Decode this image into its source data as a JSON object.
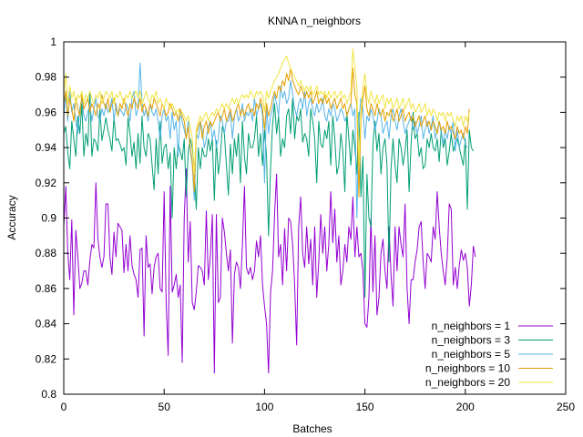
{
  "chart_data": {
    "type": "line",
    "title": "KNNA n_neighbors",
    "xlabel": "Batches",
    "ylabel": "Accuracy",
    "xlim": [
      0,
      250
    ],
    "ylim": [
      0.8,
      1.0
    ],
    "xticks": [
      "0",
      "50",
      "100",
      "150",
      "200",
      "250"
    ],
    "yticks": [
      "0.8",
      "0.82",
      "0.84",
      "0.86",
      "0.88",
      "0.9",
      "0.92",
      "0.94",
      "0.96",
      "0.98",
      "1"
    ],
    "grid": false,
    "legend_position": "bottom-right",
    "series": [
      {
        "name": "n_neighbors = 1",
        "color": "#9400d3",
        "values": [
          0.895,
          0.918,
          0.88,
          0.865,
          0.899,
          0.845,
          0.893,
          0.878,
          0.86,
          0.863,
          0.87,
          0.87,
          0.862,
          0.876,
          0.885,
          0.883,
          0.92,
          0.888,
          0.878,
          0.872,
          0.878,
          0.908,
          0.908,
          0.878,
          0.868,
          0.892,
          0.878,
          0.897,
          0.895,
          0.893,
          0.869,
          0.885,
          0.87,
          0.89,
          0.873,
          0.868,
          0.865,
          0.855,
          0.882,
          0.883,
          0.833,
          0.89,
          0.872,
          0.874,
          0.857,
          0.872,
          0.878,
          0.88,
          0.86,
          0.858,
          0.915,
          0.852,
          0.822,
          0.918,
          0.858,
          0.862,
          0.868,
          0.855,
          0.862,
          0.818,
          0.9,
          0.928,
          0.875,
          0.898,
          0.852,
          0.848,
          0.858,
          0.873,
          0.872,
          0.87,
          0.862,
          0.904,
          0.865,
          0.878,
          0.902,
          0.812,
          0.902,
          0.852,
          0.855,
          0.9,
          0.892,
          0.88,
          0.87,
          0.882,
          0.829,
          0.868,
          0.875,
          0.872,
          0.86,
          0.885,
          0.918,
          0.872,
          0.868,
          0.872,
          0.865,
          0.87,
          0.887,
          0.878,
          0.89,
          0.862,
          0.85,
          0.84,
          0.812,
          0.858,
          0.87,
          0.902,
          0.925,
          0.878,
          0.885,
          0.862,
          0.894,
          0.87,
          0.9,
          0.898,
          0.885,
          0.862,
          0.828,
          0.895,
          0.912,
          0.88,
          0.872,
          0.895,
          0.874,
          0.888,
          0.862,
          0.895,
          0.855,
          0.875,
          0.902,
          0.88,
          0.895,
          0.87,
          0.885,
          0.915,
          0.886,
          0.905,
          0.875,
          0.89,
          0.862,
          0.87,
          0.885,
          0.875,
          0.895,
          0.888,
          0.912,
          0.878,
          0.895,
          0.878,
          0.88,
          0.87,
          0.84,
          0.838,
          0.855,
          0.9,
          0.858,
          0.89,
          0.845,
          0.855,
          0.88,
          0.888,
          0.87,
          0.86,
          0.895,
          0.868,
          0.85,
          0.895,
          0.87,
          0.895,
          0.885,
          0.878,
          0.908,
          0.86,
          0.84,
          0.865,
          0.865,
          0.875,
          0.882,
          0.895,
          0.898,
          0.875,
          0.86,
          0.88,
          0.878,
          0.875,
          0.895,
          0.888,
          0.915,
          0.895,
          0.88,
          0.87,
          0.862,
          0.878,
          0.908,
          0.905,
          0.862,
          0.872,
          0.86,
          0.873,
          0.882,
          0.876,
          0.88,
          0.872,
          0.85,
          0.862,
          0.884,
          0.878
        ]
      },
      {
        "name": "n_neighbors = 3",
        "color": "#009e73",
        "values": [
          0.948,
          0.952,
          0.937,
          0.928,
          0.955,
          0.945,
          0.935,
          0.958,
          0.948,
          0.965,
          0.935,
          0.948,
          0.941,
          0.972,
          0.935,
          0.945,
          0.943,
          0.938,
          0.962,
          0.944,
          0.95,
          0.957,
          0.95,
          0.945,
          0.938,
          0.958,
          0.944,
          0.945,
          0.942,
          0.938,
          0.94,
          0.93,
          0.957,
          0.948,
          0.935,
          0.943,
          0.928,
          0.948,
          0.931,
          0.958,
          0.94,
          0.935,
          0.948,
          0.945,
          0.93,
          0.916,
          0.945,
          0.925,
          0.955,
          0.931,
          0.94,
          0.942,
          0.928,
          0.937,
          0.9,
          0.94,
          0.928,
          0.942,
          0.938,
          0.933,
          0.945,
          0.912,
          0.938,
          0.945,
          0.94,
          0.928,
          0.905,
          0.94,
          0.928,
          0.94,
          0.935,
          0.935,
          0.945,
          0.938,
          0.945,
          0.91,
          0.944,
          0.925,
          0.935,
          0.952,
          0.948,
          0.93,
          0.913,
          0.942,
          0.925,
          0.945,
          0.935,
          0.948,
          0.92,
          0.955,
          0.935,
          0.925,
          0.948,
          0.94,
          0.94,
          0.945,
          0.958,
          0.935,
          0.948,
          0.93,
          0.95,
          0.935,
          0.89,
          0.928,
          0.953,
          0.965,
          0.948,
          0.958,
          0.935,
          0.945,
          0.94,
          0.958,
          0.962,
          0.948,
          0.968,
          0.945,
          0.958,
          0.955,
          0.962,
          0.943,
          0.948,
          0.945,
          0.935,
          0.962,
          0.955,
          0.945,
          0.92,
          0.955,
          0.942,
          0.94,
          0.95,
          0.945,
          0.955,
          0.93,
          0.958,
          0.945,
          0.925,
          0.93,
          0.948,
          0.938,
          0.915,
          0.96,
          0.945,
          0.93,
          0.95,
          0.94,
          0.925,
          0.96,
          0.912,
          0.935,
          0.855,
          0.925,
          0.9,
          0.895,
          0.942,
          0.955,
          0.938,
          0.948,
          0.925,
          0.94,
          0.945,
          0.93,
          0.875,
          0.928,
          0.945,
          0.93,
          0.92,
          0.945,
          0.94,
          0.93,
          0.938,
          0.95,
          0.915,
          0.942,
          0.96,
          0.945,
          0.948,
          0.935,
          0.94,
          0.928,
          0.93,
          0.945,
          0.94,
          0.948,
          0.94,
          0.938,
          0.945,
          0.932,
          0.95,
          0.94,
          0.945,
          0.93,
          0.938,
          0.948,
          0.938,
          0.942,
          0.945,
          0.94,
          0.935,
          0.93,
          0.945,
          0.905,
          0.95,
          0.94,
          0.938
        ]
      },
      {
        "name": "n_neighbors = 5",
        "color": "#56b4e9",
        "values": [
          0.958,
          0.97,
          0.955,
          0.972,
          0.96,
          0.965,
          0.955,
          0.948,
          0.962,
          0.968,
          0.958,
          0.955,
          0.96,
          0.965,
          0.955,
          0.962,
          0.968,
          0.958,
          0.955,
          0.962,
          0.958,
          0.965,
          0.96,
          0.962,
          0.968,
          0.955,
          0.965,
          0.958,
          0.962,
          0.96,
          0.958,
          0.965,
          0.962,
          0.955,
          0.968,
          0.972,
          0.958,
          0.962,
          0.988,
          0.965,
          0.958,
          0.962,
          0.955,
          0.965,
          0.96,
          0.958,
          0.962,
          0.955,
          0.945,
          0.958,
          0.962,
          0.955,
          0.958,
          0.945,
          0.96,
          0.95,
          0.955,
          0.935,
          0.96,
          0.955,
          0.95,
          0.945,
          0.955,
          0.938,
          0.93,
          0.91,
          0.948,
          0.945,
          0.955,
          0.95,
          0.94,
          0.945,
          0.952,
          0.955,
          0.945,
          0.95,
          0.94,
          0.945,
          0.958,
          0.955,
          0.948,
          0.955,
          0.955,
          0.96,
          0.945,
          0.958,
          0.962,
          0.955,
          0.958,
          0.965,
          0.955,
          0.96,
          0.958,
          0.962,
          0.955,
          0.968,
          0.958,
          0.962,
          0.965,
          0.958,
          0.92,
          0.965,
          0.948,
          0.958,
          0.962,
          0.97,
          0.965,
          0.958,
          0.975,
          0.968,
          0.972,
          0.965,
          0.968,
          0.978,
          0.97,
          0.962,
          0.958,
          0.965,
          0.968,
          0.962,
          0.972,
          0.958,
          0.965,
          0.968,
          0.962,
          0.958,
          0.965,
          0.96,
          0.962,
          0.968,
          0.958,
          0.955,
          0.962,
          0.958,
          0.965,
          0.962,
          0.955,
          0.958,
          0.962,
          0.96,
          0.955,
          0.958,
          0.962,
          0.965,
          0.958,
          0.962,
          0.9,
          0.955,
          0.968,
          0.962,
          0.945,
          0.958,
          0.955,
          0.962,
          0.958,
          0.95,
          0.955,
          0.962,
          0.958,
          0.948,
          0.952,
          0.955,
          0.945,
          0.958,
          0.962,
          0.955,
          0.95,
          0.958,
          0.962,
          0.955,
          0.948,
          0.952,
          0.955,
          0.958,
          0.95,
          0.955,
          0.948,
          0.952,
          0.958,
          0.945,
          0.95,
          0.955,
          0.948,
          0.952,
          0.958,
          0.945,
          0.95,
          0.955,
          0.948,
          0.942,
          0.95,
          0.945,
          0.952,
          0.948,
          0.955,
          0.938,
          0.95,
          0.94,
          0.945,
          0.948,
          0.942,
          0.94
        ]
      },
      {
        "name": "n_neighbors = 10",
        "color": "#e69f00",
        "values": [
          0.965,
          0.972,
          0.958,
          0.968,
          0.962,
          0.955,
          0.968,
          0.962,
          0.958,
          0.97,
          0.962,
          0.965,
          0.968,
          0.96,
          0.965,
          0.962,
          0.958,
          0.965,
          0.962,
          0.97,
          0.965,
          0.962,
          0.968,
          0.96,
          0.965,
          0.968,
          0.962,
          0.958,
          0.965,
          0.962,
          0.968,
          0.962,
          0.958,
          0.965,
          0.962,
          0.968,
          0.965,
          0.962,
          0.968,
          0.96,
          0.965,
          0.962,
          0.958,
          0.965,
          0.962,
          0.968,
          0.965,
          0.962,
          0.958,
          0.965,
          0.962,
          0.958,
          0.96,
          0.965,
          0.962,
          0.958,
          0.96,
          0.955,
          0.962,
          0.958,
          0.955,
          0.945,
          0.952,
          0.94,
          0.932,
          0.915,
          0.948,
          0.952,
          0.955,
          0.945,
          0.952,
          0.955,
          0.948,
          0.955,
          0.952,
          0.955,
          0.958,
          0.96,
          0.955,
          0.958,
          0.962,
          0.955,
          0.958,
          0.962,
          0.955,
          0.958,
          0.962,
          0.965,
          0.958,
          0.962,
          0.958,
          0.962,
          0.965,
          0.96,
          0.962,
          0.958,
          0.965,
          0.962,
          0.968,
          0.962,
          0.95,
          0.965,
          0.958,
          0.962,
          0.968,
          0.972,
          0.968,
          0.975,
          0.972,
          0.978,
          0.975,
          0.982,
          0.978,
          0.985,
          0.978,
          0.975,
          0.972,
          0.97,
          0.975,
          0.972,
          0.968,
          0.972,
          0.968,
          0.972,
          0.965,
          0.968,
          0.972,
          0.965,
          0.968,
          0.965,
          0.97,
          0.965,
          0.968,
          0.962,
          0.965,
          0.968,
          0.962,
          0.965,
          0.968,
          0.962,
          0.965,
          0.958,
          0.962,
          0.965,
          0.985,
          0.97,
          0.965,
          0.912,
          0.955,
          0.968,
          0.975,
          0.962,
          0.958,
          0.965,
          0.962,
          0.958,
          0.965,
          0.96,
          0.958,
          0.962,
          0.955,
          0.96,
          0.958,
          0.962,
          0.955,
          0.958,
          0.962,
          0.955,
          0.958,
          0.962,
          0.955,
          0.958,
          0.96,
          0.955,
          0.958,
          0.952,
          0.955,
          0.958,
          0.952,
          0.955,
          0.958,
          0.952,
          0.955,
          0.95,
          0.955,
          0.952,
          0.948,
          0.955,
          0.95,
          0.952,
          0.948,
          0.955,
          0.95,
          0.952,
          0.948,
          0.945,
          0.952,
          0.948,
          0.95,
          0.945,
          0.952,
          0.948,
          0.962
        ]
      },
      {
        "name": "n_neighbors = 20",
        "color": "#f0e442",
        "values": [
          0.97,
          0.982,
          0.965,
          0.975,
          0.968,
          0.972,
          0.965,
          0.97,
          0.968,
          0.972,
          0.965,
          0.97,
          0.968,
          0.972,
          0.968,
          0.965,
          0.97,
          0.968,
          0.972,
          0.965,
          0.968,
          0.972,
          0.97,
          0.968,
          0.972,
          0.965,
          0.97,
          0.968,
          0.972,
          0.968,
          0.965,
          0.97,
          0.968,
          0.972,
          0.968,
          0.97,
          0.972,
          0.968,
          0.972,
          0.965,
          0.968,
          0.972,
          0.968,
          0.965,
          0.97,
          0.968,
          0.972,
          0.965,
          0.968,
          0.965,
          0.962,
          0.968,
          0.965,
          0.962,
          0.965,
          0.962,
          0.96,
          0.962,
          0.958,
          0.96,
          0.958,
          0.955,
          0.958,
          0.952,
          0.945,
          0.925,
          0.95,
          0.955,
          0.958,
          0.955,
          0.958,
          0.96,
          0.955,
          0.958,
          0.96,
          0.958,
          0.962,
          0.96,
          0.962,
          0.965,
          0.962,
          0.965,
          0.962,
          0.965,
          0.968,
          0.965,
          0.968,
          0.965,
          0.968,
          0.97,
          0.968,
          0.97,
          0.968,
          0.972,
          0.97,
          0.968,
          0.972,
          0.97,
          0.972,
          0.97,
          0.96,
          0.972,
          0.968,
          0.972,
          0.975,
          0.978,
          0.98,
          0.982,
          0.985,
          0.988,
          0.99,
          0.992,
          0.988,
          0.985,
          0.982,
          0.98,
          0.978,
          0.975,
          0.978,
          0.975,
          0.972,
          0.975,
          0.972,
          0.975,
          0.97,
          0.972,
          0.975,
          0.97,
          0.972,
          0.97,
          0.972,
          0.968,
          0.972,
          0.968,
          0.97,
          0.972,
          0.968,
          0.97,
          0.972,
          0.968,
          0.97,
          0.965,
          0.968,
          0.972,
          0.996,
          0.985,
          0.975,
          0.93,
          0.96,
          0.975,
          0.982,
          0.97,
          0.965,
          0.972,
          0.968,
          0.965,
          0.97,
          0.965,
          0.968,
          0.97,
          0.962,
          0.968,
          0.965,
          0.968,
          0.962,
          0.965,
          0.968,
          0.962,
          0.965,
          0.968,
          0.962,
          0.965,
          0.968,
          0.962,
          0.965,
          0.96,
          0.962,
          0.965,
          0.96,
          0.962,
          0.965,
          0.958,
          0.962,
          0.958,
          0.962,
          0.96,
          0.955,
          0.96,
          0.958,
          0.96,
          0.955,
          0.96,
          0.958,
          0.96,
          0.955,
          0.952,
          0.958,
          0.955,
          0.958,
          0.952,
          0.958,
          0.955,
          0.96
        ]
      }
    ]
  }
}
